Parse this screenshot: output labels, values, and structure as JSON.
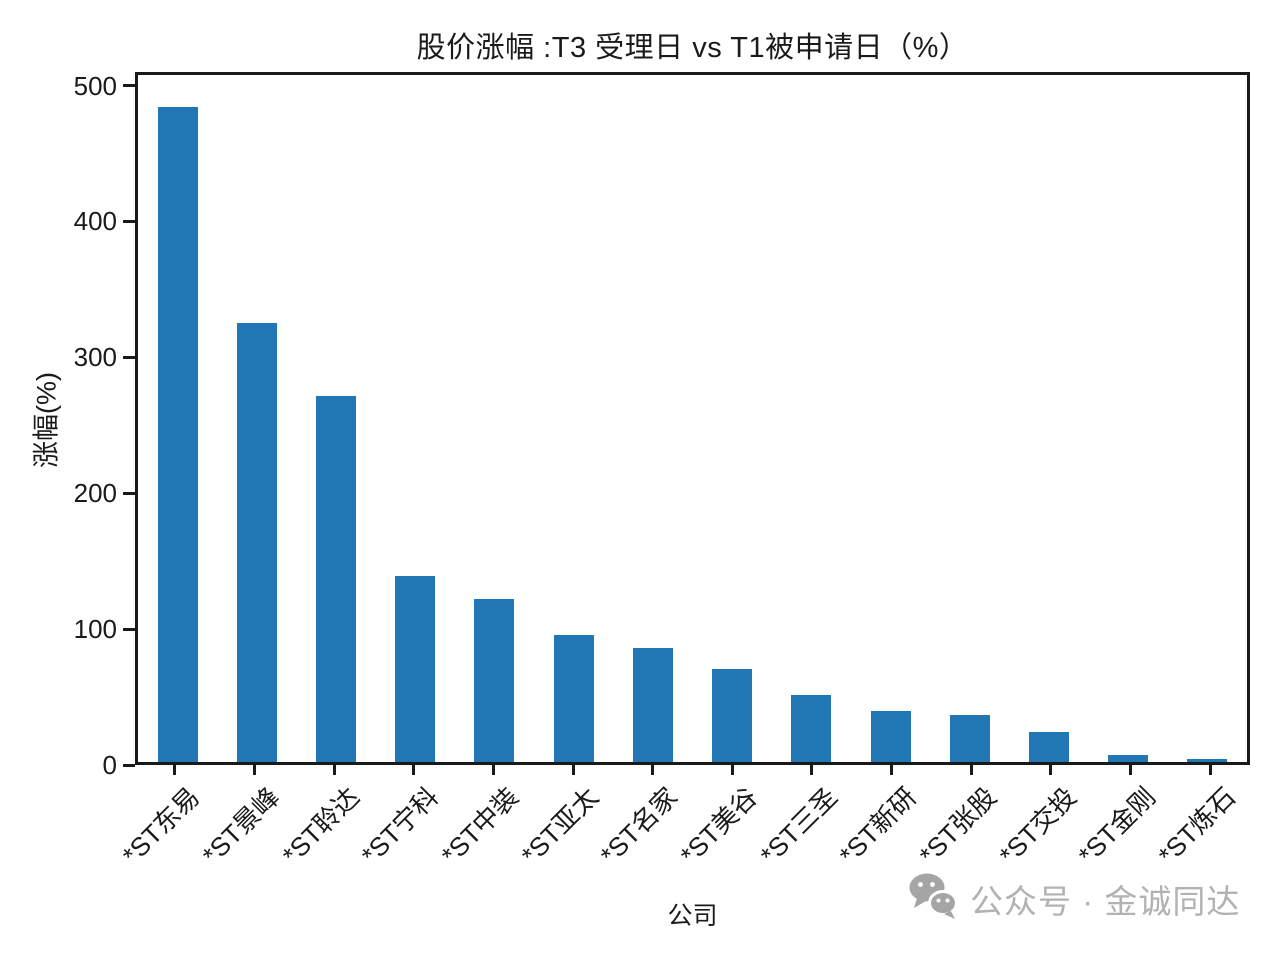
{
  "chart_data": {
    "type": "bar",
    "title": "股价涨幅 :T3 受理日 vs T1被申请日（%）",
    "xlabel": "公司",
    "ylabel": "涨幅(%)",
    "categories": [
      "*ST东易",
      "*ST景峰",
      "*ST聆达",
      "*ST宁科",
      "*ST中装",
      "*ST亚太",
      "*ST名家",
      "*ST美谷",
      "*ST三圣",
      "*ST新研",
      "*ST张股",
      "*ST交投",
      "*ST金刚",
      "*ST炼石"
    ],
    "values": [
      486,
      326,
      272,
      138,
      121,
      94,
      85,
      69,
      50,
      38,
      35,
      22,
      5,
      2
    ],
    "yticks": [
      0,
      100,
      200,
      300,
      400,
      500
    ],
    "ylim": [
      0,
      510
    ],
    "bar_color": "#2077b4",
    "axis_color": "#1a1a1a",
    "grid": false,
    "legend": null,
    "x_tick_rotation_deg": 45
  },
  "watermark": {
    "icon": "wechat-icon",
    "icon_color": "#a5a5a5",
    "text": "公众号 · 金诚同达",
    "text_color": "#b2b2b2"
  }
}
